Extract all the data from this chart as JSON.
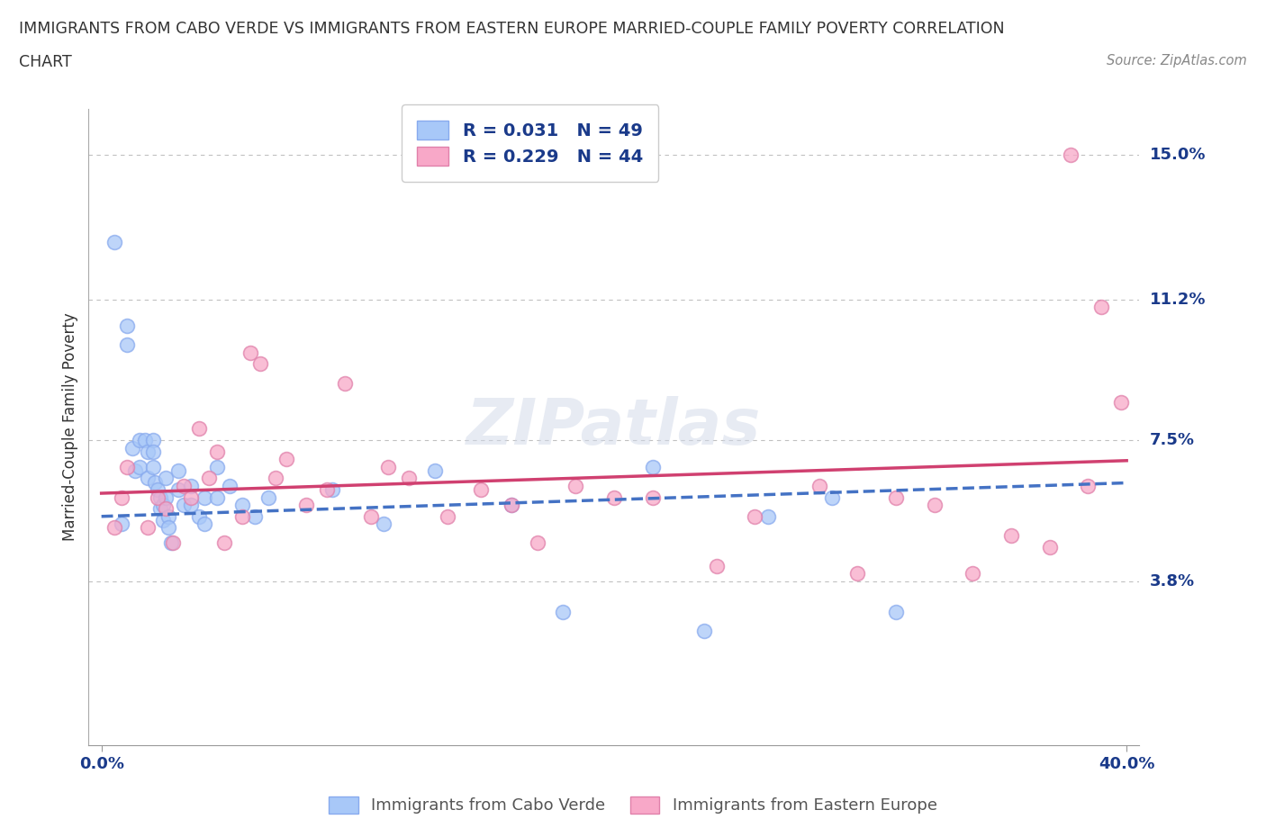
{
  "title_line1": "IMMIGRANTS FROM CABO VERDE VS IMMIGRANTS FROM EASTERN EUROPE MARRIED-COUPLE FAMILY POVERTY CORRELATION",
  "title_line2": "CHART",
  "source": "Source: ZipAtlas.com",
  "ylabel": "Married-Couple Family Poverty",
  "xlim": [
    0.0,
    0.4
  ],
  "ylim": [
    0.0,
    0.16
  ],
  "yticks": [
    0.038,
    0.075,
    0.112,
    0.15
  ],
  "ytick_labels": [
    "3.8%",
    "7.5%",
    "11.2%",
    "15.0%"
  ],
  "xticks": [
    0.0,
    0.4
  ],
  "xtick_labels": [
    "0.0%",
    "40.0%"
  ],
  "hlines": [
    0.038,
    0.075,
    0.112,
    0.15
  ],
  "cabo_verde_color": "#a8c8f8",
  "eastern_europe_color": "#f8a8c8",
  "cabo_verde_R": 0.031,
  "cabo_verde_N": 49,
  "eastern_europe_R": 0.229,
  "eastern_europe_N": 44,
  "cabo_verde_label": "Immigrants from Cabo Verde",
  "eastern_europe_label": "Immigrants from Eastern Europe",
  "legend_color": "#1a3a8a",
  "trend_cabo_color": "#4472c4",
  "trend_eastern_color": "#d04070",
  "watermark": "ZIPatlas",
  "background_color": "#ffffff",
  "cabo_verde_x": [
    0.005,
    0.008,
    0.01,
    0.01,
    0.012,
    0.013,
    0.015,
    0.015,
    0.017,
    0.018,
    0.018,
    0.02,
    0.02,
    0.02,
    0.021,
    0.022,
    0.023,
    0.023,
    0.024,
    0.024,
    0.025,
    0.025,
    0.026,
    0.026,
    0.027,
    0.03,
    0.03,
    0.032,
    0.035,
    0.035,
    0.038,
    0.04,
    0.04,
    0.045,
    0.045,
    0.05,
    0.055,
    0.06,
    0.065,
    0.09,
    0.11,
    0.13,
    0.16,
    0.18,
    0.215,
    0.235,
    0.26,
    0.285,
    0.31
  ],
  "cabo_verde_y": [
    0.127,
    0.053,
    0.105,
    0.1,
    0.073,
    0.067,
    0.075,
    0.068,
    0.075,
    0.072,
    0.065,
    0.075,
    0.072,
    0.068,
    0.064,
    0.062,
    0.06,
    0.057,
    0.058,
    0.054,
    0.065,
    0.06,
    0.055,
    0.052,
    0.048,
    0.067,
    0.062,
    0.058,
    0.063,
    0.058,
    0.055,
    0.06,
    0.053,
    0.068,
    0.06,
    0.063,
    0.058,
    0.055,
    0.06,
    0.062,
    0.053,
    0.067,
    0.058,
    0.03,
    0.068,
    0.025,
    0.055,
    0.06,
    0.03
  ],
  "eastern_europe_x": [
    0.005,
    0.008,
    0.01,
    0.018,
    0.022,
    0.025,
    0.028,
    0.032,
    0.035,
    0.038,
    0.042,
    0.045,
    0.048,
    0.055,
    0.058,
    0.062,
    0.068,
    0.072,
    0.08,
    0.088,
    0.095,
    0.105,
    0.112,
    0.12,
    0.135,
    0.148,
    0.16,
    0.17,
    0.185,
    0.2,
    0.215,
    0.24,
    0.255,
    0.28,
    0.295,
    0.31,
    0.325,
    0.34,
    0.355,
    0.37,
    0.378,
    0.385,
    0.39,
    0.398
  ],
  "eastern_europe_y": [
    0.052,
    0.06,
    0.068,
    0.052,
    0.06,
    0.057,
    0.048,
    0.063,
    0.06,
    0.078,
    0.065,
    0.072,
    0.048,
    0.055,
    0.098,
    0.095,
    0.065,
    0.07,
    0.058,
    0.062,
    0.09,
    0.055,
    0.068,
    0.065,
    0.055,
    0.062,
    0.058,
    0.048,
    0.063,
    0.06,
    0.06,
    0.042,
    0.055,
    0.063,
    0.04,
    0.06,
    0.058,
    0.04,
    0.05,
    0.047,
    0.15,
    0.063,
    0.11,
    0.085
  ]
}
